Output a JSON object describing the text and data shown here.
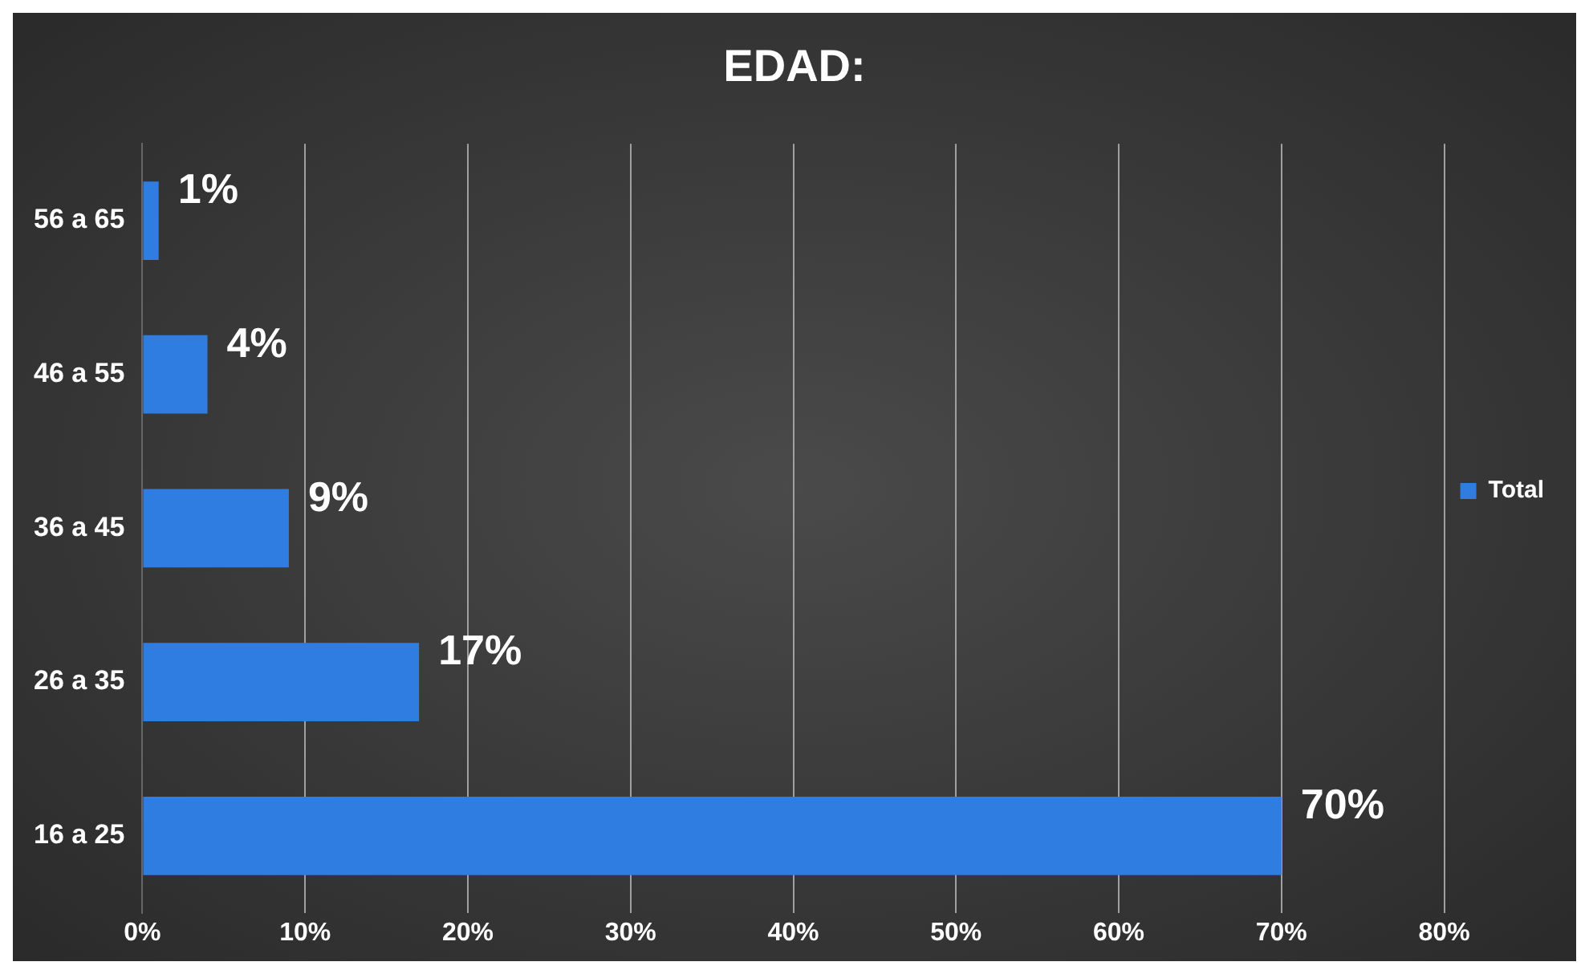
{
  "chart_data": {
    "type": "bar",
    "orientation": "horizontal",
    "title": "EDAD:",
    "categories": [
      "56 a 65",
      "46 a 55",
      "36 a 45",
      "26 a 35",
      "16 a 25"
    ],
    "series": [
      {
        "name": "Total",
        "color": "#2f7de0",
        "values": [
          1,
          4,
          9,
          17,
          70
        ],
        "value_labels": [
          "1%",
          "4%",
          "9%",
          "17%",
          "70%"
        ]
      }
    ],
    "xlim": [
      0,
      80
    ],
    "xticks": [
      {
        "value": 0,
        "label": "0%"
      },
      {
        "value": 10,
        "label": "10%"
      },
      {
        "value": 20,
        "label": "20%"
      },
      {
        "value": 30,
        "label": "30%"
      },
      {
        "value": 40,
        "label": "40%"
      },
      {
        "value": 50,
        "label": "50%"
      },
      {
        "value": 60,
        "label": "60%"
      },
      {
        "value": 70,
        "label": "70%"
      },
      {
        "value": 80,
        "label": "80%"
      }
    ],
    "grid": "x",
    "legend": "right"
  }
}
